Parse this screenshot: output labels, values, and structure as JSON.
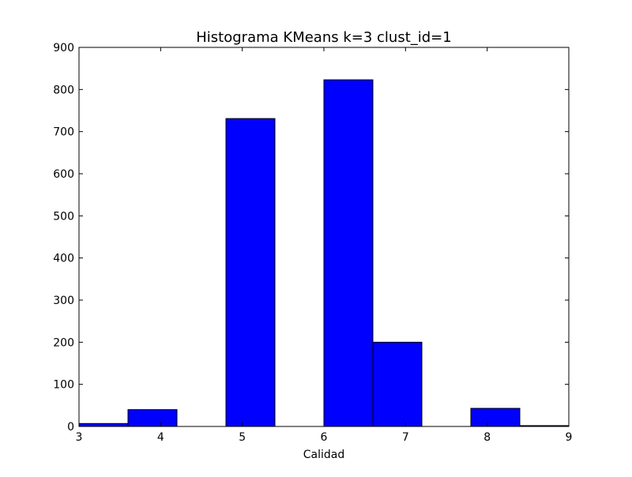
{
  "chart_data": {
    "type": "bar",
    "title": "Histograma KMeans k=3 clust_id=1",
    "xlabel": "Calidad",
    "ylabel": "",
    "xlim": [
      3,
      9
    ],
    "ylim": [
      0,
      900
    ],
    "xticks": [
      "3",
      "4",
      "5",
      "6",
      "7",
      "8",
      "9"
    ],
    "yticks": [
      "0",
      "100",
      "200",
      "300",
      "400",
      "500",
      "600",
      "700",
      "800",
      "900"
    ],
    "bin_edges": [
      3.0,
      3.6,
      4.2,
      4.8,
      5.4,
      6.0,
      6.6,
      7.2,
      7.8,
      8.4,
      9.0
    ],
    "values": [
      7,
      40,
      0,
      731,
      0,
      823,
      200,
      0,
      43,
      2
    ],
    "bar_color": "#0000ff",
    "edge_color": "#000000",
    "grid": false,
    "legend": false
  }
}
